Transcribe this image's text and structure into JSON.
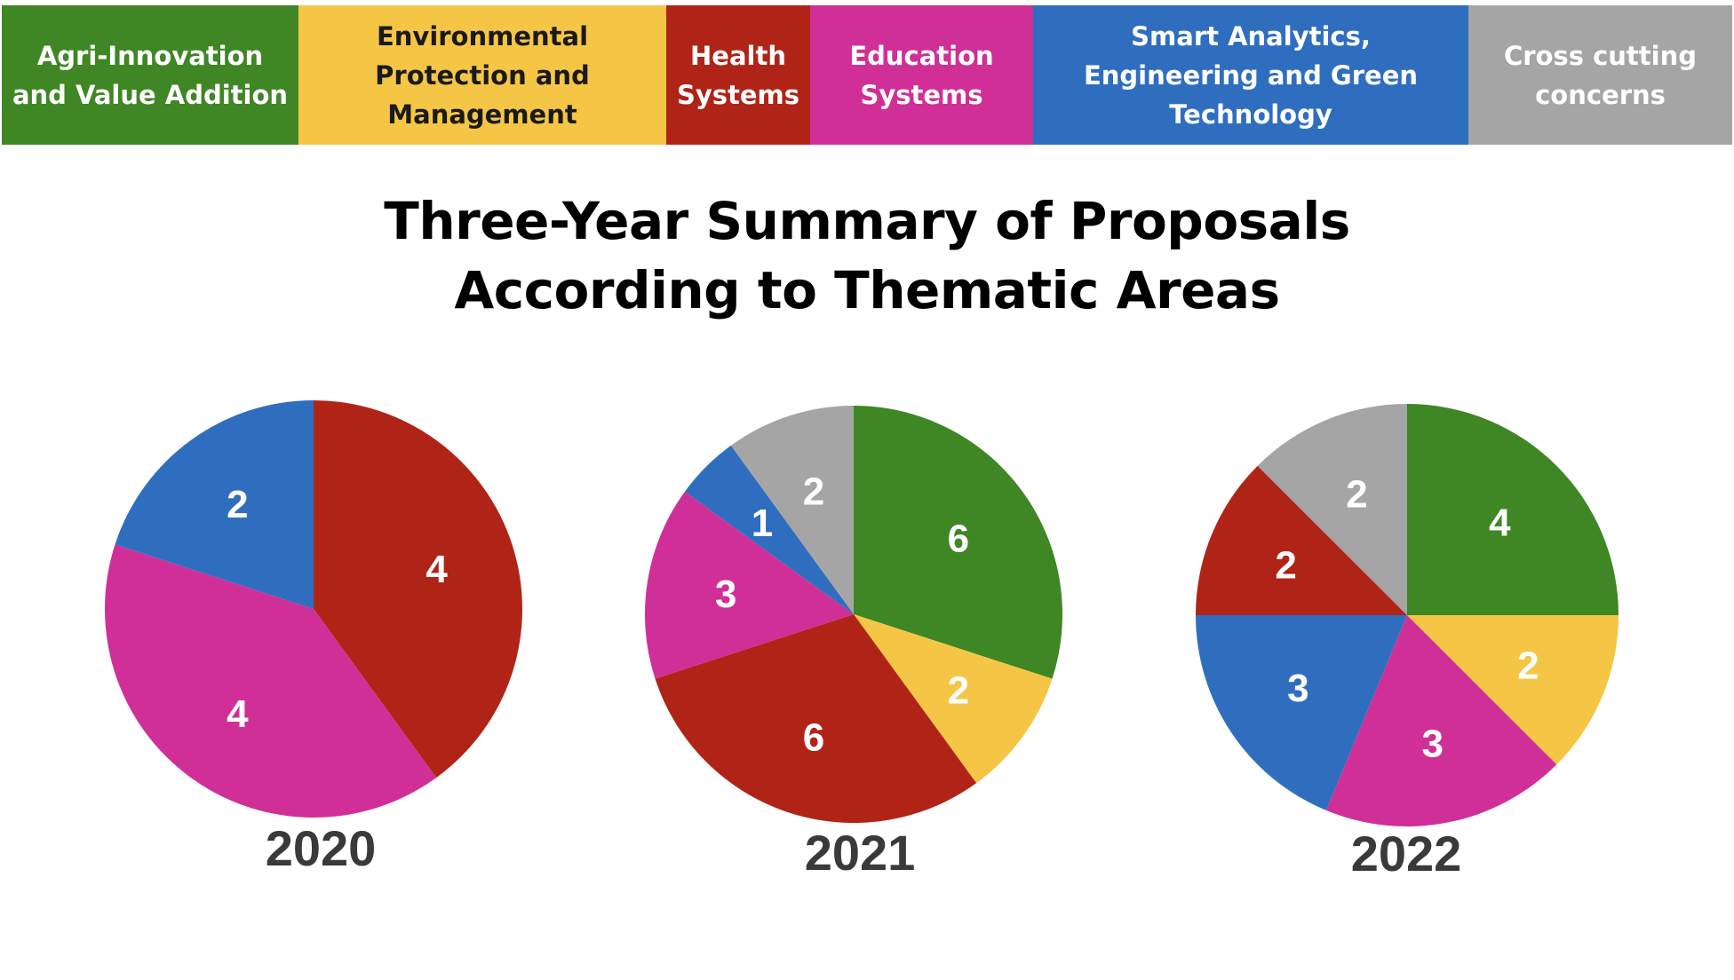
{
  "legend": [
    {
      "label": "Agri-Innovation and Value Addition",
      "color": "#3f8624"
    },
    {
      "label": "Environmental Protection and Management",
      "color": "#f5c645"
    },
    {
      "label": "Health Systems",
      "color": "#b02418"
    },
    {
      "label": "Education Systems",
      "color": "#d02f98"
    },
    {
      "label": "Smart Analytics, Engineering and Green Technology",
      "color": "#2f6ebf"
    },
    {
      "label": "Cross cutting concerns",
      "color": "#a5a5a5"
    }
  ],
  "title": {
    "line1": "Three-Year Summary of Proposals",
    "line2": "According to Thematic Areas"
  },
  "chart_data": [
    {
      "type": "pie",
      "year_label": "2020",
      "categories": [
        "Health Systems",
        "Education Systems",
        "Smart Analytics, Engineering and Green Technology"
      ],
      "values": [
        4,
        4,
        2
      ],
      "colors": [
        "#b02418",
        "#d02f98",
        "#2f6ebf"
      ]
    },
    {
      "type": "pie",
      "year_label": "2021",
      "categories": [
        "Agri-Innovation and Value Addition",
        "Environmental Protection and Management",
        "Health Systems",
        "Education Systems",
        "Smart Analytics, Engineering and Green Technology",
        "Cross cutting concerns"
      ],
      "values": [
        6,
        2,
        6,
        3,
        1,
        2
      ],
      "colors": [
        "#3f8624",
        "#f5c645",
        "#b02418",
        "#d02f98",
        "#2f6ebf",
        "#a5a5a5"
      ]
    },
    {
      "type": "pie",
      "year_label": "2022",
      "categories": [
        "Agri-Innovation and Value Addition",
        "Environmental Protection and Management",
        "Education Systems",
        "Smart Analytics, Engineering and Green Technology",
        "Health Systems",
        "Cross cutting concerns"
      ],
      "values": [
        4,
        2,
        3,
        3,
        2,
        2
      ],
      "colors": [
        "#3f8624",
        "#f5c645",
        "#d02f98",
        "#2f6ebf",
        "#b02418",
        "#a5a5a5"
      ]
    }
  ]
}
